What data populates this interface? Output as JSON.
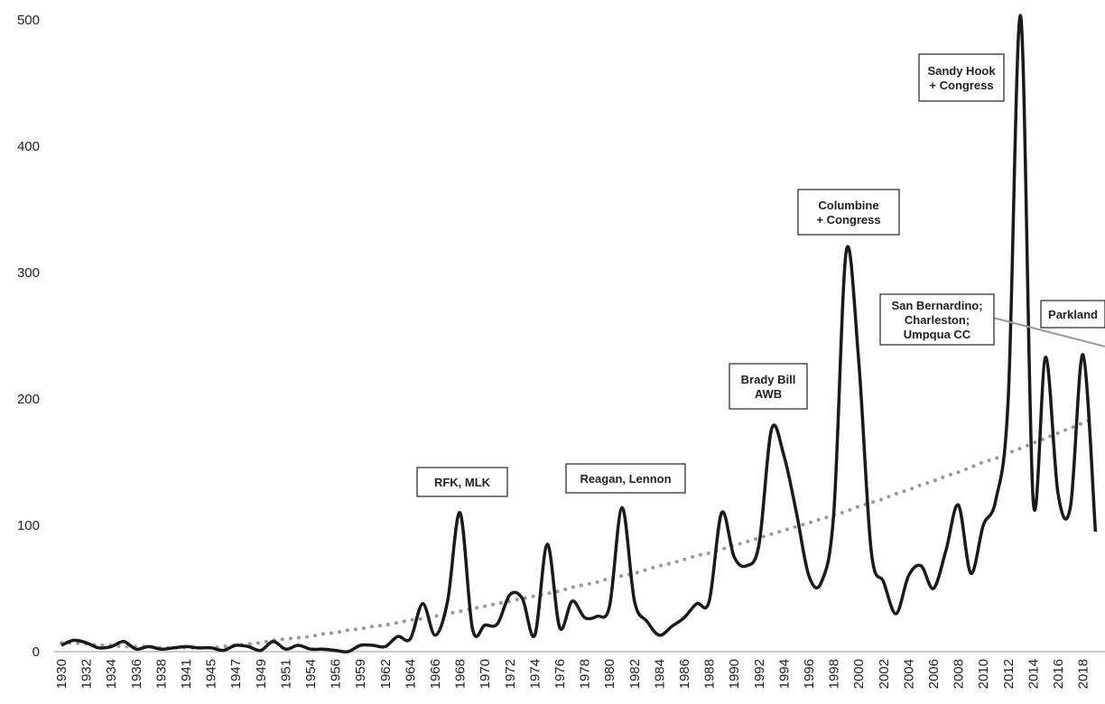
{
  "chart_data": {
    "type": "line",
    "categories": [
      1930,
      null,
      1932,
      null,
      1934,
      null,
      1936,
      null,
      1938,
      null,
      1941,
      null,
      1945,
      null,
      1947,
      null,
      1949,
      null,
      1951,
      null,
      1954,
      null,
      1956,
      null,
      1959,
      null,
      1962,
      null,
      1964,
      null,
      1966,
      null,
      1968,
      null,
      1970,
      null,
      1972,
      null,
      1974,
      null,
      1976,
      null,
      1978,
      null,
      1980,
      null,
      1982,
      null,
      1984,
      null,
      1986,
      null,
      1988,
      null,
      1990,
      null,
      1992,
      null,
      1994,
      null,
      1996,
      null,
      1998,
      null,
      2000,
      null,
      2002,
      null,
      2004,
      null,
      2006,
      null,
      2008,
      null,
      2010,
      null,
      2012,
      null,
      2014,
      null,
      2016,
      null,
      2018,
      null
    ],
    "series": [
      {
        "color": "#1a1a1a",
        "style": "solid",
        "values": [
          5,
          9,
          7,
          3,
          4,
          8,
          2,
          4,
          2,
          3,
          4,
          3,
          3,
          1,
          5,
          4,
          1,
          8,
          2,
          5,
          2,
          2,
          1,
          0,
          5,
          5,
          4,
          12,
          10,
          38,
          13,
          40,
          110,
          18,
          21,
          22,
          45,
          42,
          13,
          85,
          19,
          40,
          27,
          28,
          36,
          114,
          40,
          24,
          13,
          20,
          27,
          38,
          40,
          110,
          75,
          68,
          85,
          176,
          155,
          110,
          60,
          55,
          110,
          317,
          230,
          80,
          55,
          30,
          60,
          68,
          50,
          80,
          116,
          62,
          100,
          120,
          200,
          503,
          120,
          233,
          125,
          115,
          235,
          95
        ]
      },
      {
        "color": "#999999",
        "style": "dotted",
        "values": [
          7,
          7,
          6,
          5,
          5,
          4,
          4,
          4,
          3,
          3,
          3,
          3,
          3,
          4,
          5,
          6,
          7,
          9,
          10,
          11,
          12,
          14,
          15,
          17,
          18,
          20,
          21,
          23,
          25,
          26,
          28,
          30,
          32,
          34,
          36,
          38,
          40,
          42,
          44,
          46,
          48,
          51,
          53,
          55,
          58,
          60,
          62,
          65,
          68,
          70,
          73,
          76,
          78,
          81,
          84,
          87,
          90,
          93,
          96,
          99,
          102,
          105,
          108,
          111,
          115,
          118,
          121,
          125,
          128,
          132,
          135,
          139,
          142,
          146,
          150,
          153,
          157,
          161,
          165,
          169,
          173,
          177,
          181,
          185
        ]
      }
    ],
    "ylim": [
      0,
      500
    ],
    "yticks": [
      0,
      100,
      200,
      300,
      400,
      500
    ],
    "grid": false,
    "annotations": [
      {
        "lines": [
          "RFK, MLK"
        ]
      },
      {
        "lines": [
          "Reagan, Lennon"
        ]
      },
      {
        "lines": [
          "Brady Bill",
          "AWB"
        ]
      },
      {
        "lines": [
          "Columbine",
          "+ Congress"
        ]
      },
      {
        "lines": [
          "Sandy Hook",
          "+ Congress"
        ]
      },
      {
        "lines": [
          "San Bernardino;",
          "Charleston;",
          "Umpqua CC"
        ]
      },
      {
        "lines": [
          "Parkland"
        ]
      }
    ]
  }
}
